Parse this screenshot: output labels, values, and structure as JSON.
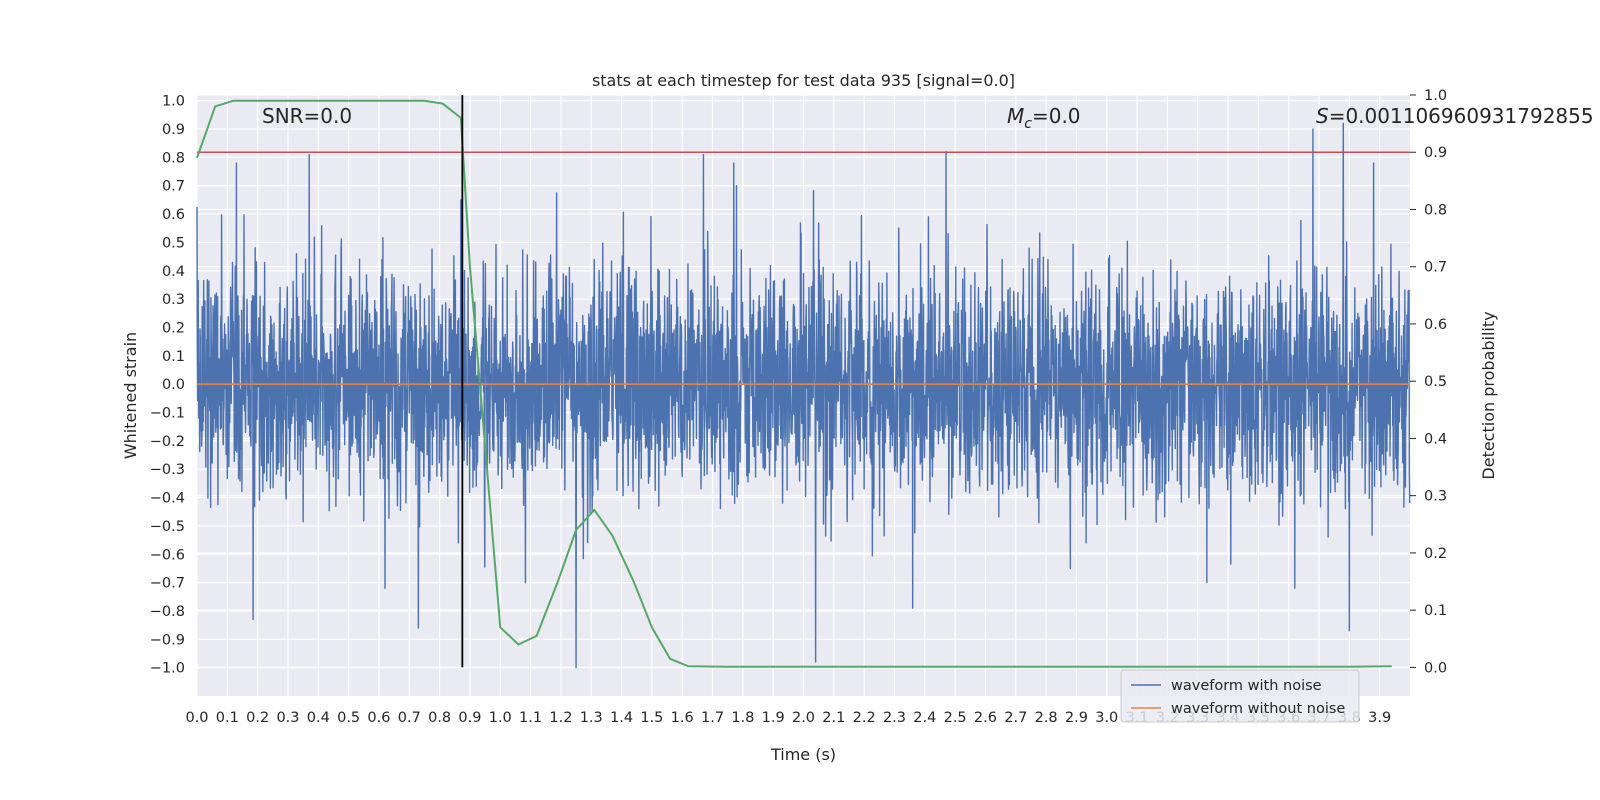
{
  "chart_data": {
    "type": "line",
    "title": "stats at each timestep for test data 935 [signal=0.0]",
    "xlabel": "Time (s)",
    "ylabel_left": "Whitened strain",
    "ylabel_right": "Detection probability",
    "xlim": [
      0.0,
      4.0
    ],
    "ylim_left": [
      -1.1,
      1.02
    ],
    "ylim_right": [
      -0.05,
      1.0
    ],
    "x_ticks": [
      "0.0",
      "0.1",
      "0.2",
      "0.3",
      "0.4",
      "0.5",
      "0.6",
      "0.7",
      "0.8",
      "0.9",
      "1.0",
      "1.1",
      "1.2",
      "1.3",
      "1.4",
      "1.5",
      "1.6",
      "1.7",
      "1.8",
      "1.9",
      "2.0",
      "2.1",
      "2.2",
      "2.3",
      "2.4",
      "2.5",
      "2.6",
      "2.7",
      "2.8",
      "2.9",
      "3.0",
      "3.1",
      "3.2",
      "3.3",
      "3.4",
      "3.5",
      "3.6",
      "3.7",
      "3.8",
      "3.9"
    ],
    "y_ticks_left": [
      "1.0",
      "0.9",
      "0.8",
      "0.7",
      "0.6",
      "0.5",
      "0.4",
      "0.3",
      "0.2",
      "0.1",
      "0.0",
      "−0.1",
      "−0.2",
      "−0.3",
      "−0.4",
      "−0.5",
      "−0.6",
      "−0.7",
      "−0.8",
      "−0.9",
      "−1.0"
    ],
    "y_ticks_right": [
      "1.0",
      "0.9",
      "0.8",
      "0.7",
      "0.6",
      "0.5",
      "0.4",
      "0.3",
      "0.2",
      "0.1",
      "0.0"
    ],
    "grid": true,
    "legend_position": "bottom-right",
    "annotations": {
      "snr": "SNR=0.0",
      "mc_symbol": "M",
      "mc_subscript": "c",
      "mc_value": "=0.0",
      "s_symbol": "S",
      "s_value": "=0.001106960931792855"
    },
    "series": [
      {
        "name": "waveform with noise",
        "axis": "left",
        "color": "#4c72b0",
        "description_range": [
          -1.0,
          0.92
        ],
        "sample_count": 4000,
        "spikes": [
          [
            0.13,
            0.78
          ],
          [
            0.185,
            -0.83
          ],
          [
            0.37,
            0.81
          ],
          [
            0.62,
            -0.72
          ],
          [
            0.73,
            -0.86
          ],
          [
            0.87,
            0.65
          ],
          [
            1.25,
            -1.0
          ],
          [
            1.67,
            0.81
          ],
          [
            1.77,
            0.78
          ],
          [
            2.04,
            -0.98
          ],
          [
            2.47,
            0.82
          ],
          [
            2.36,
            -0.79
          ],
          [
            2.88,
            -0.65
          ],
          [
            3.33,
            -0.7
          ],
          [
            3.62,
            -0.72
          ],
          [
            3.68,
            0.9
          ],
          [
            3.78,
            0.92
          ],
          [
            3.8,
            -0.87
          ],
          [
            3.88,
            0.78
          ]
        ]
      },
      {
        "name": "waveform without noise",
        "axis": "left",
        "color": "#dd8452",
        "values": [
          0.0,
          0.0
        ]
      },
      {
        "name": "detection probability",
        "axis": "right",
        "color": "#55a868",
        "x": [
          0.0,
          0.06,
          0.12,
          0.25,
          0.5,
          0.75,
          0.81,
          0.87,
          0.9,
          0.94,
          1.0,
          1.06,
          1.12,
          1.19,
          1.25,
          1.31,
          1.37,
          1.44,
          1.5,
          1.56,
          1.62,
          1.75,
          2.0,
          3.0,
          3.5,
          3.8,
          3.94
        ],
        "y": [
          0.89,
          0.98,
          0.99,
          0.99,
          0.99,
          0.99,
          0.985,
          0.96,
          0.7,
          0.45,
          0.07,
          0.04,
          0.055,
          0.15,
          0.24,
          0.275,
          0.23,
          0.15,
          0.07,
          0.015,
          0.002,
          0.001,
          0.001,
          0.001,
          0.001,
          0.001,
          0.002
        ]
      },
      {
        "name": "threshold",
        "axis": "right",
        "color": "#c44e52",
        "values": [
          0.9,
          0.9
        ]
      }
    ],
    "vertical_marker": {
      "x": 0.875,
      "color": "#000000",
      "ymin_right": 0.0,
      "ymax_right": 1.0
    },
    "legend": [
      "waveform with noise",
      "waveform without noise"
    ]
  }
}
